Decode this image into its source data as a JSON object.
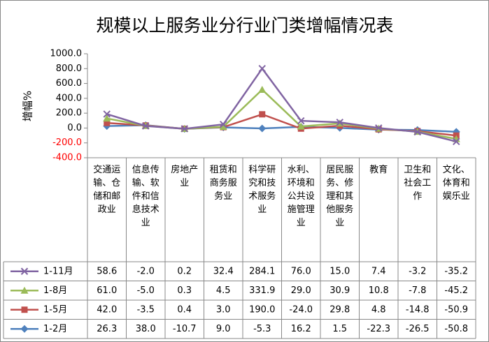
{
  "chart_data": {
    "type": "line",
    "stacked": true,
    "title": "规模以上服务业分行业门类增幅情况表",
    "y_label": "增幅%",
    "categories": [
      "交通运输、仓储和邮政业",
      "信息传输、软件和信息技术业",
      "房地产业",
      "租赁和商务服务业",
      "科学研究和技术服务业",
      "水利、环境和公共设施管理业",
      "居民服务、修理和其他服务业",
      "教育",
      "卫生和社会工作",
      "文化、体育和娱乐业"
    ],
    "ylim": [
      -400,
      1000
    ],
    "yticks": [
      {
        "value": -400,
        "label": "-400.0"
      },
      {
        "value": -200,
        "label": "-200.0"
      },
      {
        "value": 0,
        "label": "0.0"
      },
      {
        "value": 200,
        "label": "200.0"
      },
      {
        "value": 400,
        "label": "400.0"
      },
      {
        "value": 600,
        "label": "600.0"
      },
      {
        "value": 800,
        "label": "800.0"
      },
      {
        "value": 1000,
        "label": "1000.0"
      }
    ],
    "series": [
      {
        "name": "1-11月",
        "color": "#8064a2",
        "marker": "x",
        "values": [
          58.6,
          -2.0,
          0.2,
          32.4,
          284.1,
          76.0,
          15.0,
          7.4,
          -3.2,
          -35.2
        ],
        "value_labels": [
          "58.6",
          "-2.0",
          "0.2",
          "32.4",
          "284.1",
          "76.0",
          "15.0",
          "7.4",
          "-3.2",
          "-35.2"
        ]
      },
      {
        "name": "1-8月",
        "color": "#9bbb59",
        "marker": "triangle",
        "values": [
          61.0,
          -5.0,
          0.3,
          4.5,
          331.9,
          29.0,
          30.9,
          10.8,
          -7.8,
          -45.2
        ],
        "value_labels": [
          "61.0",
          "-5.0",
          "0.3",
          "4.5",
          "331.9",
          "29.0",
          "30.9",
          "10.8",
          "-7.8",
          "-45.2"
        ]
      },
      {
        "name": "1-5月",
        "color": "#c0504d",
        "marker": "square",
        "values": [
          42.0,
          -3.5,
          0.4,
          3.0,
          190.0,
          -24.0,
          29.8,
          4.8,
          -14.8,
          -50.9
        ],
        "value_labels": [
          "42.0",
          "-3.5",
          "0.4",
          "3.0",
          "190.0",
          "-24.0",
          "29.8",
          "4.8",
          "-14.8",
          "-50.9"
        ]
      },
      {
        "name": "1-2月",
        "color": "#4f81bd",
        "marker": "diamond",
        "values": [
          26.3,
          38.0,
          -10.7,
          9.0,
          -5.3,
          16.2,
          1.5,
          -22.3,
          -26.5,
          -50.8
        ],
        "value_labels": [
          "26.3",
          "38.0",
          "-10.7",
          "9.0",
          "-5.3",
          "16.2",
          "1.5",
          "-22.3",
          "-26.5",
          "-50.8"
        ]
      }
    ]
  }
}
